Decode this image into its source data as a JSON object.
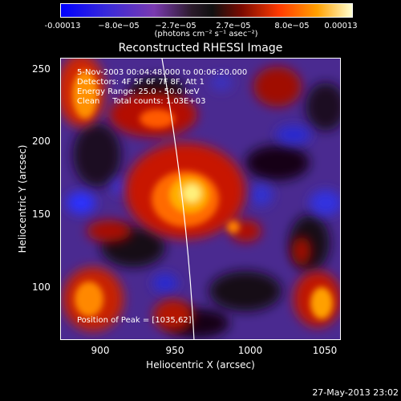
{
  "colorbar": {
    "ticks": [
      "-0.00013",
      "−8.0e−05",
      "−2.7e−05",
      "2.7e−05",
      "8.0e−05",
      "0.00013"
    ],
    "unit": "(photons cm⁻² s⁻¹ asec⁻²)"
  },
  "title": "Reconstructed RHESSI Image",
  "annotations": {
    "line1": "5-Nov-2003 00:04:48.000 to 00:06:20.000",
    "line2": "Detectors: 4F 5F 6F 7F 8F, Att 1",
    "line3": "Energy Range: 25.0 - 50.0 keV",
    "line4": "Clean     Total counts: 1.03E+03",
    "peak": "Position of Peak = [1035,62]"
  },
  "axes": {
    "xlabel": "Heliocentric X (arcsec)",
    "ylabel": "Heliocentric Y (arcsec)",
    "xticks": [
      "900",
      "950",
      "1000",
      "1050"
    ],
    "yticks": [
      "250",
      "200",
      "150",
      "100"
    ]
  },
  "timestamp": "27-May-2013 23:02",
  "colors": {
    "background": "#000000",
    "text": "#ffffff",
    "limb_line": "#ffffff"
  }
}
